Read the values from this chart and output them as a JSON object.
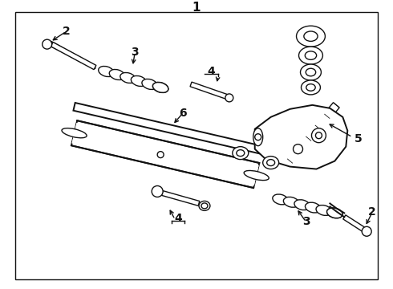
{
  "bg_color": "#ffffff",
  "lc": "#111111",
  "lw": 1.0,
  "lwt": 1.4,
  "fs": 10,
  "border": [
    18,
    12,
    454,
    334
  ],
  "label_1": "1",
  "label_2": "2",
  "label_3": "3",
  "label_4": "4",
  "label_5": "5",
  "label_6": "6"
}
